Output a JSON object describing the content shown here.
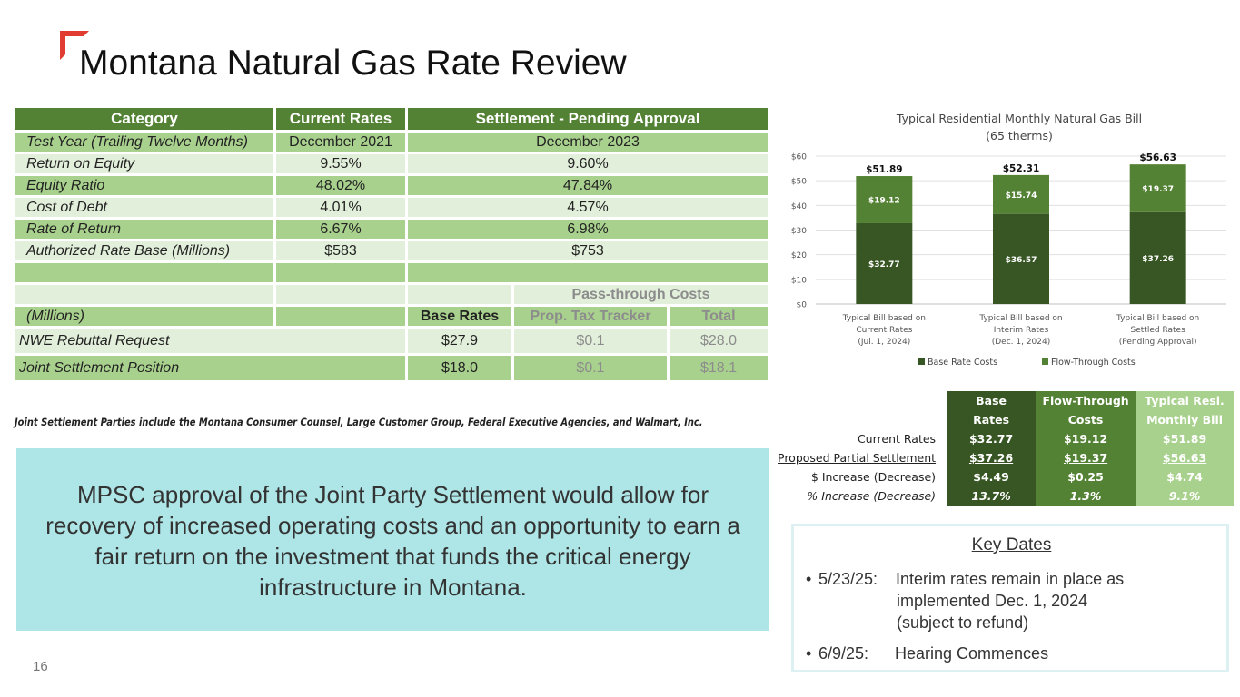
{
  "slide": {
    "title": "Montana Natural Gas Rate Review",
    "page_number": "16",
    "accent_color": "#e03c31"
  },
  "rate_table": {
    "headers": [
      "Category",
      "Current Rates",
      "Settlement - Pending Approval"
    ],
    "rows": [
      {
        "category": "Test Year (Trailing Twelve Months)",
        "current": "December 2021",
        "settlement": "December 2023"
      },
      {
        "category": "Return on Equity",
        "current": "9.55%",
        "settlement": "9.60%"
      },
      {
        "category": "Equity Ratio",
        "current": "48.02%",
        "settlement": "47.84%"
      },
      {
        "category": "Cost of Debt",
        "current": "4.01%",
        "settlement": "4.57%"
      },
      {
        "category": "Rate of Return",
        "current": "6.67%",
        "settlement": "6.98%"
      },
      {
        "category": "Authorized Rate Base (Millions)",
        "current": "$583",
        "settlement": "$753"
      }
    ],
    "pass_through_header": "Pass-through Costs",
    "millions_label": "(Millions)",
    "sub_headers": [
      "Base Rates",
      "Prop. Tax Tracker",
      "Total"
    ],
    "positions": [
      {
        "label": "NWE Rebuttal Request",
        "base": "$27.9",
        "tracker": "$0.1",
        "total": "$28.0"
      },
      {
        "label": "Joint Settlement Position",
        "base": "$18.0",
        "tracker": "$0.1",
        "total": "$18.1"
      }
    ],
    "colors": {
      "header": "#548235",
      "dark_row": "#a9d18e",
      "light_row": "#e2efda"
    }
  },
  "footnote": "Joint Settlement Parties include the Montana Consumer Counsel, Large Customer Group, Federal Executive Agencies, and Walmart, Inc.",
  "callout": {
    "text": "MPSC approval of the Joint Party Settlement would allow for recovery of increased operating costs and an opportunity to earn a fair return on the investment that funds the critical energy infrastructure in Montana.",
    "background": "#aee5e6"
  },
  "chart_data": {
    "type": "bar",
    "stacked": true,
    "title": "Typical Residential Monthly Natural Gas Bill",
    "subtitle": "(65 therms)",
    "categories": [
      [
        "Typical Bill based on",
        "Current Rates",
        "(Jul. 1, 2024)"
      ],
      [
        "Typical Bill based on",
        "Interim Rates",
        "(Dec. 1, 2024)"
      ],
      [
        "Typical Bill based on",
        "Settled Rates",
        "(Pending Approval)"
      ]
    ],
    "series": [
      {
        "name": "Base Rate Costs",
        "values": [
          32.77,
          36.57,
          37.26
        ],
        "labels": [
          "$32.77",
          "$36.57",
          "$37.26"
        ],
        "color": "#375623"
      },
      {
        "name": "Flow-Through Costs",
        "values": [
          19.12,
          15.74,
          19.37
        ],
        "labels": [
          "$19.12",
          "$15.74",
          "$19.37"
        ],
        "color": "#548235"
      }
    ],
    "totals": [
      "$51.89",
      "$52.31",
      "$56.63"
    ],
    "ylim": [
      0,
      60
    ],
    "yticks": [
      "$0",
      "$10",
      "$20",
      "$30",
      "$40",
      "$50",
      "$60"
    ],
    "ytick_values": [
      0,
      10,
      20,
      30,
      40,
      50,
      60
    ],
    "grid": true,
    "legend_position": "bottom",
    "legend_colors": {
      "base": "#375623",
      "flow": "#548235"
    }
  },
  "comparison_table": {
    "headers": [
      [
        "Base",
        "Rates"
      ],
      [
        "Flow-Through",
        "Costs"
      ],
      [
        "Typical Resi.",
        "Monthly Bill"
      ]
    ],
    "rows": [
      {
        "label": "Current Rates",
        "values": [
          "$32.77",
          "$19.12",
          "$51.89"
        ]
      },
      {
        "label": "Proposed Partial Settlement",
        "values": [
          "$37.26",
          "$19.37",
          "$56.63"
        ]
      },
      {
        "label": "$ Increase (Decrease)",
        "values": [
          "$4.49",
          "$0.25",
          "$4.74"
        ]
      },
      {
        "label": "% Increase (Decrease)",
        "values": [
          "13.7%",
          "1.3%",
          "9.1%"
        ]
      }
    ]
  },
  "key_dates": {
    "title": "Key Dates",
    "items": [
      {
        "date": "5/23/25:",
        "lines": [
          "Interim rates remain in place as",
          "implemented Dec. 1, 2024",
          "(subject to refund)"
        ]
      },
      {
        "date": "6/9/25:",
        "lines": [
          "Hearing Commences"
        ]
      }
    ]
  }
}
